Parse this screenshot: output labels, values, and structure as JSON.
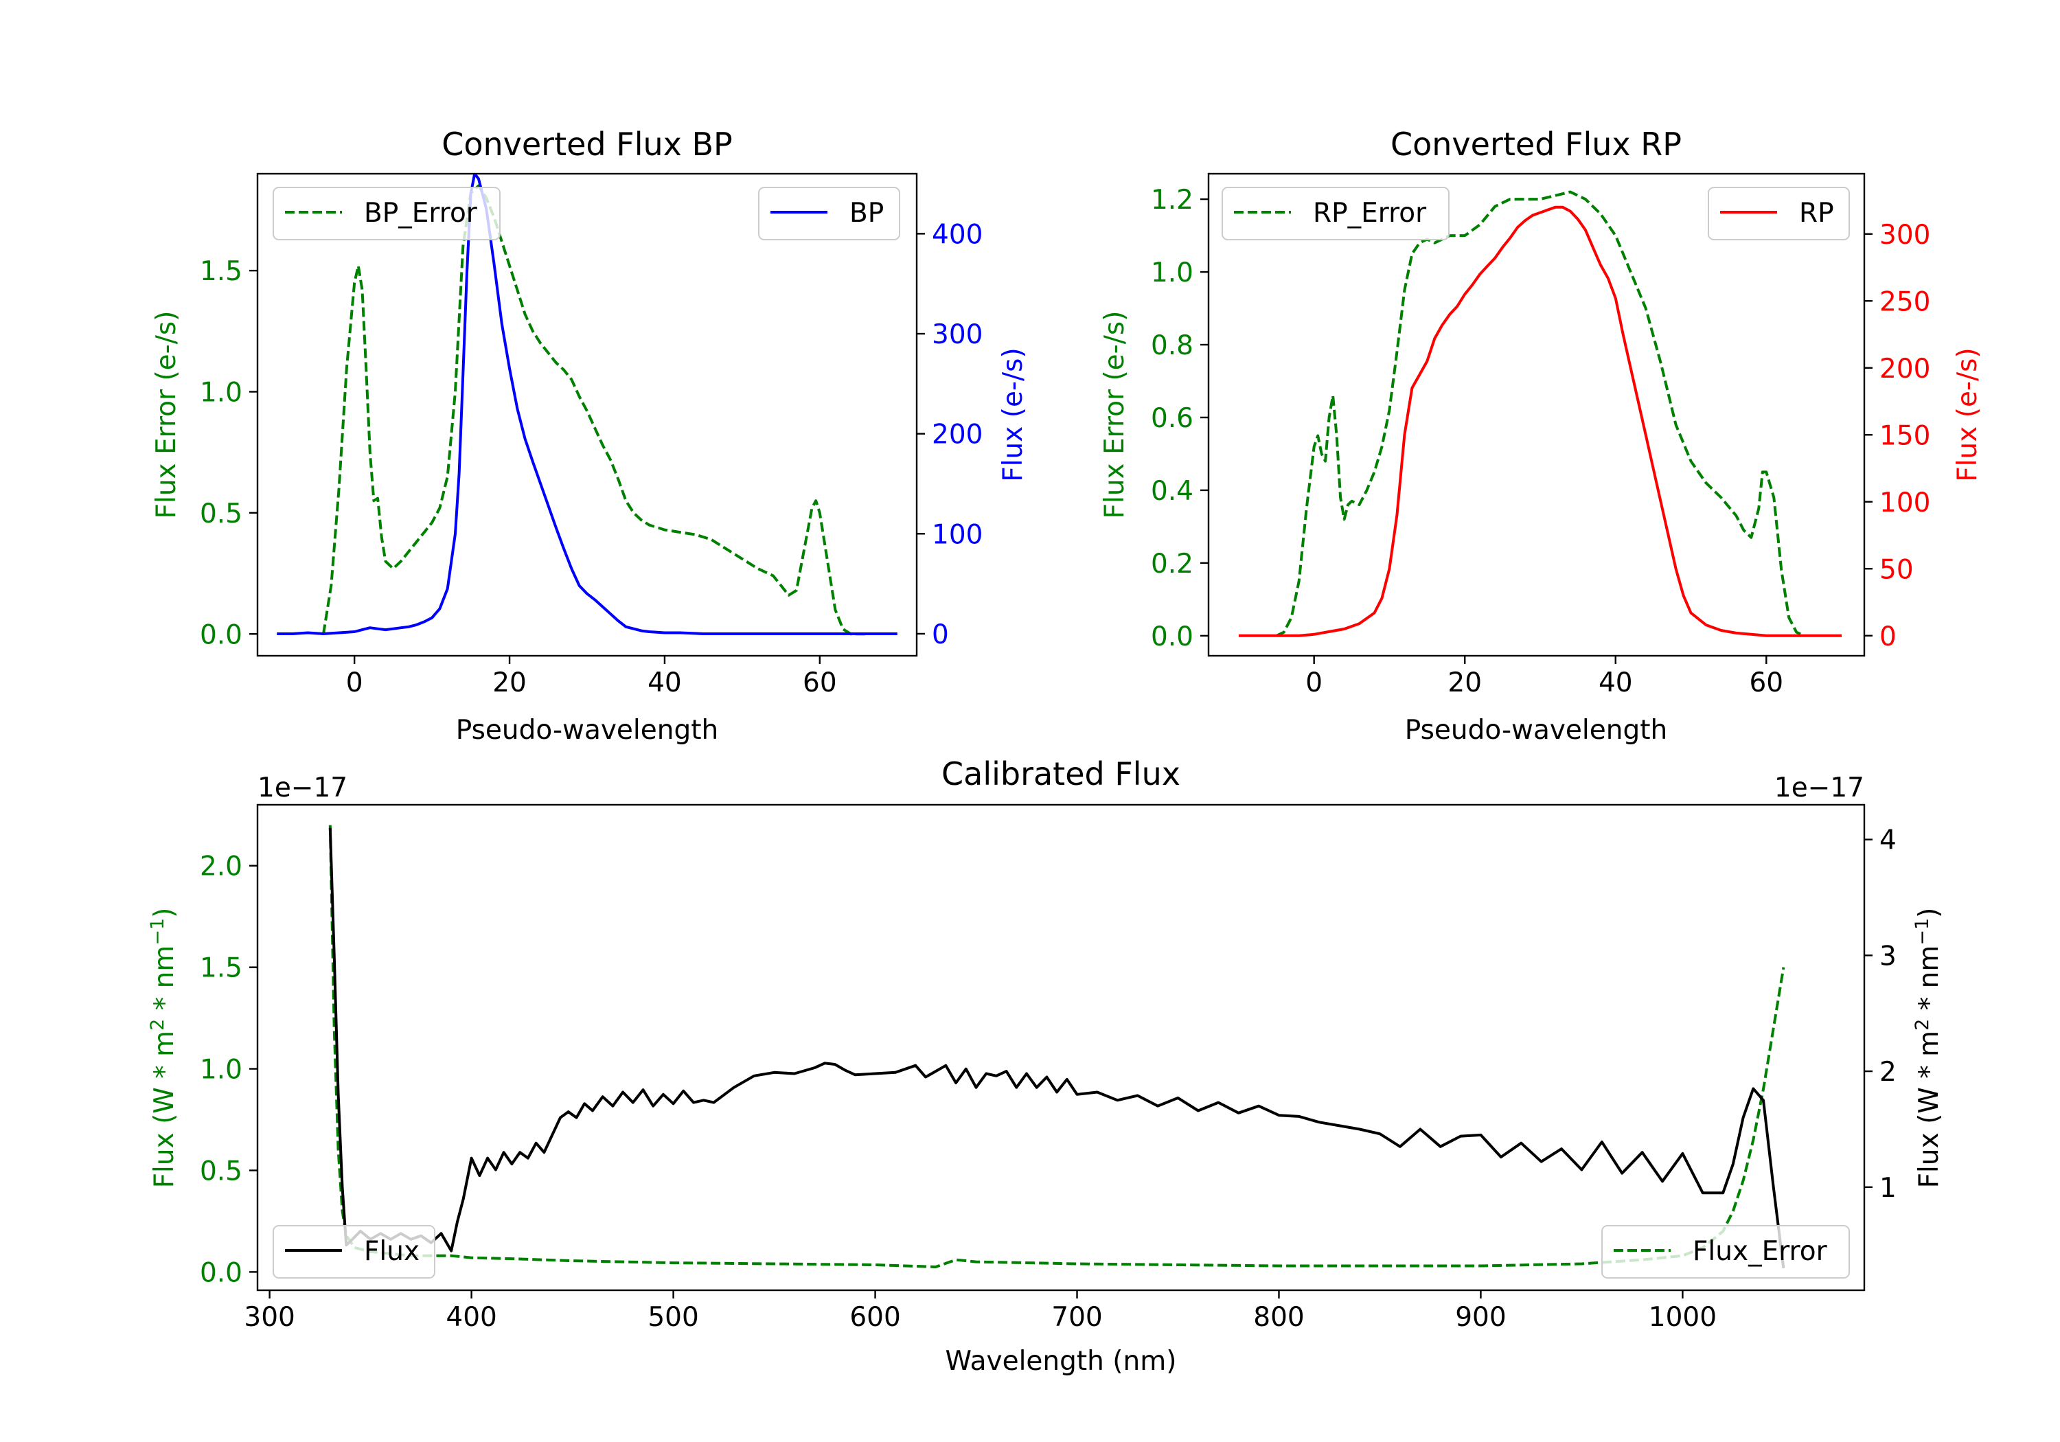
{
  "chart_data": [
    {
      "id": "bp",
      "type": "line",
      "title": "Converted Flux BP",
      "xlabel": "Pseudo-wavelength",
      "ylabel_left": "Flux Error (e-/s)",
      "ylabel_right": "Flux (e-/s)",
      "xlim": [
        -12.5,
        72.5
      ],
      "ylim_left": [
        -0.09,
        1.9
      ],
      "ylim_right": [
        -22,
        460
      ],
      "xticks": [
        0,
        20,
        40,
        60
      ],
      "xtick_labels": [
        "0",
        "20",
        "40",
        "60"
      ],
      "yticks_left": [
        0.0,
        0.5,
        1.0,
        1.5
      ],
      "ytick_labels_left": [
        "0.0",
        "0.5",
        "1.0",
        "1.5"
      ],
      "yticks_right": [
        0,
        100,
        200,
        300,
        400
      ],
      "ytick_labels_right": [
        "0",
        "100",
        "200",
        "300",
        "400"
      ],
      "left_color": "#008000",
      "right_color": "#0000ff",
      "series": [
        {
          "name": "BP_Error",
          "axis": "left",
          "style": "dashed",
          "color": "#008000",
          "x": [
            -4,
            -3,
            -2,
            -1,
            0,
            0.5,
            1,
            1.5,
            2,
            2.5,
            3,
            3.5,
            4,
            5,
            6,
            7,
            8,
            9,
            10,
            11,
            12,
            13,
            14,
            15,
            16,
            17,
            18,
            19,
            20,
            21,
            22,
            23,
            24,
            25,
            26,
            27,
            28,
            29,
            30,
            31,
            32,
            33,
            34,
            35,
            36,
            37,
            38,
            40,
            42,
            44,
            46,
            48,
            50,
            52,
            54,
            56,
            57,
            58,
            59,
            59.5,
            60,
            61,
            62,
            63,
            64,
            65,
            66
          ],
          "y": [
            0.0,
            0.2,
            0.6,
            1.1,
            1.45,
            1.52,
            1.42,
            1.1,
            0.75,
            0.55,
            0.56,
            0.4,
            0.3,
            0.27,
            0.3,
            0.34,
            0.38,
            0.42,
            0.46,
            0.52,
            0.65,
            1.0,
            1.6,
            1.82,
            1.85,
            1.8,
            1.72,
            1.62,
            1.52,
            1.42,
            1.32,
            1.25,
            1.2,
            1.16,
            1.12,
            1.09,
            1.05,
            0.98,
            0.92,
            0.85,
            0.78,
            0.72,
            0.64,
            0.55,
            0.5,
            0.47,
            0.45,
            0.43,
            0.42,
            0.41,
            0.39,
            0.35,
            0.31,
            0.27,
            0.24,
            0.16,
            0.18,
            0.35,
            0.52,
            0.55,
            0.5,
            0.3,
            0.1,
            0.02,
            0.0,
            0.0,
            0.0
          ]
        },
        {
          "name": "BP",
          "axis": "right",
          "style": "solid",
          "color": "#0000ff",
          "x": [
            -10,
            -8,
            -6,
            -4,
            -2,
            0,
            1,
            2,
            3,
            4,
            5,
            6,
            7,
            8,
            9,
            10,
            11,
            12,
            13,
            13.5,
            14,
            14.5,
            15,
            15.5,
            16,
            17,
            18,
            19,
            20,
            21,
            22,
            23,
            24,
            25,
            26,
            27,
            28,
            29,
            30,
            31,
            32,
            33,
            34,
            35,
            36,
            37,
            38,
            40,
            42,
            45,
            50,
            55,
            60,
            65,
            70
          ],
          "y": [
            0,
            0,
            1,
            0,
            1,
            2,
            4,
            6,
            5,
            4,
            5,
            6,
            7,
            9,
            12,
            16,
            25,
            45,
            100,
            160,
            260,
            360,
            440,
            460,
            455,
            425,
            370,
            310,
            265,
            225,
            195,
            172,
            150,
            128,
            106,
            85,
            65,
            48,
            40,
            34,
            27,
            20,
            13,
            7,
            5,
            3,
            2,
            1,
            1,
            0,
            0,
            0,
            0,
            0,
            0
          ]
        }
      ],
      "legend": [
        {
          "label": "BP_Error",
          "placement": "upper-left"
        },
        {
          "label": "BP",
          "placement": "upper-right"
        }
      ]
    },
    {
      "id": "rp",
      "type": "line",
      "title": "Converted Flux RP",
      "xlabel": "Pseudo-wavelength",
      "ylabel_left": "Flux Error (e-/s)",
      "ylabel_right": "Flux (e-/s)",
      "xlim": [
        -14,
        73
      ],
      "ylim_left": [
        -0.055,
        1.27
      ],
      "ylim_right": [
        -15,
        345
      ],
      "xticks": [
        0,
        20,
        40,
        60
      ],
      "xtick_labels": [
        "0",
        "20",
        "40",
        "60"
      ],
      "yticks_left": [
        0.0,
        0.2,
        0.4,
        0.6,
        0.8,
        1.0,
        1.2
      ],
      "ytick_labels_left": [
        "0.0",
        "0.2",
        "0.4",
        "0.6",
        "0.8",
        "1.0",
        "1.2"
      ],
      "yticks_right": [
        0,
        50,
        100,
        150,
        200,
        250,
        300
      ],
      "ytick_labels_right": [
        "0",
        "50",
        "100",
        "150",
        "200",
        "250",
        "300"
      ],
      "left_color": "#008000",
      "right_color": "#ff0000",
      "series": [
        {
          "name": "RP_Error",
          "axis": "left",
          "style": "dashed",
          "color": "#008000",
          "x": [
            -5,
            -4,
            -3,
            -2,
            -1,
            0,
            0.5,
            1,
            1.5,
            2,
            2.5,
            3,
            3.5,
            4,
            4.5,
            5,
            6,
            7,
            8,
            9,
            10,
            11,
            12,
            13,
            14,
            15,
            16,
            18,
            20,
            22,
            24,
            26,
            28,
            30,
            32,
            34,
            36,
            38,
            40,
            42,
            44,
            46,
            48,
            50,
            52,
            54,
            56,
            57,
            58,
            59,
            59.5,
            60,
            61,
            62,
            63,
            64,
            65
          ],
          "y": [
            0.0,
            0.01,
            0.05,
            0.15,
            0.35,
            0.52,
            0.55,
            0.5,
            0.48,
            0.6,
            0.66,
            0.55,
            0.38,
            0.32,
            0.36,
            0.37,
            0.36,
            0.4,
            0.45,
            0.52,
            0.62,
            0.78,
            0.95,
            1.05,
            1.08,
            1.09,
            1.08,
            1.1,
            1.1,
            1.13,
            1.18,
            1.2,
            1.2,
            1.2,
            1.21,
            1.22,
            1.2,
            1.16,
            1.1,
            1.0,
            0.9,
            0.75,
            0.58,
            0.48,
            0.42,
            0.38,
            0.33,
            0.29,
            0.27,
            0.35,
            0.45,
            0.45,
            0.38,
            0.18,
            0.05,
            0.01,
            0.0
          ]
        },
        {
          "name": "RP",
          "axis": "right",
          "style": "solid",
          "color": "#ff0000",
          "x": [
            -10,
            -8,
            -6,
            -4,
            -2,
            0,
            2,
            4,
            6,
            8,
            9,
            10,
            11,
            12,
            13,
            14,
            15,
            16,
            17,
            18,
            19,
            20,
            21,
            22,
            23,
            24,
            25,
            26,
            27,
            28,
            29,
            30,
            31,
            32,
            33,
            34,
            35,
            36,
            37,
            38,
            39,
            40,
            41,
            42,
            43,
            44,
            45,
            46,
            47,
            48,
            49,
            50,
            52,
            54,
            56,
            58,
            60,
            62,
            65,
            70
          ],
          "y": [
            0,
            0,
            0,
            0,
            0,
            1,
            3,
            5,
            9,
            17,
            28,
            50,
            90,
            150,
            185,
            195,
            205,
            222,
            232,
            240,
            246,
            255,
            262,
            270,
            276,
            282,
            290,
            297,
            305,
            310,
            314,
            316,
            318,
            320,
            320,
            317,
            311,
            303,
            290,
            277,
            267,
            252,
            225,
            200,
            175,
            150,
            125,
            100,
            75,
            50,
            30,
            17,
            8,
            4,
            2,
            1,
            0,
            0,
            0,
            0
          ]
        }
      ],
      "legend": [
        {
          "label": "RP_Error",
          "placement": "upper-left"
        },
        {
          "label": "RP",
          "placement": "upper-right"
        }
      ]
    },
    {
      "id": "cal",
      "type": "line",
      "title": "Calibrated Flux",
      "xlabel": "Wavelength (nm)",
      "ylabel_left": "Flux (W * m^2 * nm^-1)",
      "ylabel_right": "Flux (W * m^2 * nm^-1)",
      "ylabel_text": "Flux (W * m",
      "ylabel_sup1": "2",
      "ylabel_mid": " * nm",
      "ylabel_sup2": "−1",
      "ylabel_end": ")",
      "offset_left": "1e−17",
      "offset_right": "1e−17",
      "xlim": [
        294,
        1090
      ],
      "ylim_left": [
        -0.09,
        2.3
      ],
      "ylim_right": [
        0.11,
        4.3
      ],
      "xticks": [
        300,
        400,
        500,
        600,
        700,
        800,
        900,
        1000
      ],
      "xtick_labels": [
        "300",
        "400",
        "500",
        "600",
        "700",
        "800",
        "900",
        "1000"
      ],
      "yticks_left": [
        0.0,
        0.5,
        1.0,
        1.5,
        2.0
      ],
      "ytick_labels_left": [
        "0.0",
        "0.5",
        "1.0",
        "1.5",
        "2.0"
      ],
      "yticks_right": [
        1,
        2,
        3,
        4
      ],
      "ytick_labels_right": [
        "1",
        "2",
        "3",
        "4"
      ],
      "left_color": "#008000",
      "right_color": "#000000",
      "series": [
        {
          "name": "Flux_Error",
          "axis": "left",
          "style": "dashed",
          "color": "#008000",
          "x": [
            330,
            332,
            334,
            336,
            338,
            342,
            350,
            360,
            370,
            380,
            390,
            400,
            420,
            450,
            500,
            550,
            600,
            630,
            640,
            650,
            700,
            750,
            800,
            850,
            900,
            950,
            980,
            1000,
            1010,
            1020,
            1025,
            1030,
            1035,
            1040,
            1045,
            1050
          ],
          "y": [
            2.2,
            1.2,
            0.6,
            0.3,
            0.18,
            0.12,
            0.1,
            0.09,
            0.08,
            0.08,
            0.08,
            0.07,
            0.065,
            0.055,
            0.045,
            0.04,
            0.035,
            0.025,
            0.06,
            0.05,
            0.04,
            0.035,
            0.03,
            0.03,
            0.03,
            0.04,
            0.06,
            0.08,
            0.12,
            0.2,
            0.3,
            0.45,
            0.65,
            0.9,
            1.2,
            1.5
          ]
        },
        {
          "name": "Flux",
          "axis": "right",
          "style": "solid",
          "color": "#000000",
          "x": [
            330,
            332,
            334,
            336,
            338,
            341,
            345,
            350,
            355,
            360,
            365,
            370,
            375,
            380,
            385,
            390,
            393,
            396,
            400,
            404,
            408,
            412,
            416,
            420,
            424,
            428,
            432,
            436,
            440,
            444,
            448,
            452,
            456,
            460,
            465,
            470,
            475,
            480,
            485,
            490,
            495,
            500,
            505,
            510,
            515,
            520,
            530,
            540,
            550,
            560,
            570,
            575,
            580,
            585,
            590,
            600,
            610,
            620,
            625,
            630,
            635,
            640,
            645,
            650,
            655,
            660,
            665,
            670,
            675,
            680,
            685,
            690,
            695,
            700,
            710,
            720,
            730,
            740,
            750,
            760,
            770,
            780,
            790,
            800,
            810,
            820,
            830,
            840,
            850,
            860,
            870,
            880,
            890,
            900,
            910,
            920,
            930,
            940,
            950,
            960,
            970,
            980,
            990,
            1000,
            1010,
            1020,
            1025,
            1030,
            1035,
            1040,
            1045,
            1050
          ],
          "y": [
            4.1,
            3.0,
            1.8,
            1.0,
            0.5,
            0.55,
            0.62,
            0.55,
            0.6,
            0.55,
            0.6,
            0.55,
            0.58,
            0.52,
            0.6,
            0.45,
            0.7,
            0.9,
            1.25,
            1.1,
            1.25,
            1.15,
            1.3,
            1.2,
            1.3,
            1.25,
            1.38,
            1.3,
            1.45,
            1.6,
            1.65,
            1.6,
            1.72,
            1.66,
            1.78,
            1.7,
            1.82,
            1.73,
            1.84,
            1.7,
            1.8,
            1.72,
            1.83,
            1.73,
            1.75,
            1.73,
            1.86,
            1.96,
            1.99,
            1.98,
            2.03,
            2.07,
            2.06,
            2.01,
            1.97,
            1.98,
            1.99,
            2.05,
            1.95,
            2.0,
            2.05,
            1.9,
            2.02,
            1.86,
            1.98,
            1.96,
            2.0,
            1.86,
            1.98,
            1.86,
            1.95,
            1.82,
            1.93,
            1.8,
            1.82,
            1.75,
            1.79,
            1.7,
            1.77,
            1.66,
            1.73,
            1.64,
            1.7,
            1.62,
            1.61,
            1.56,
            1.53,
            1.5,
            1.46,
            1.35,
            1.5,
            1.35,
            1.44,
            1.45,
            1.26,
            1.38,
            1.22,
            1.33,
            1.15,
            1.39,
            1.12,
            1.3,
            1.05,
            1.29,
            0.95,
            0.95,
            1.2,
            1.6,
            1.85,
            1.75,
            1.0,
            0.3
          ]
        }
      ],
      "legend": [
        {
          "label": "Flux",
          "placement": "lower-left"
        },
        {
          "label": "Flux_Error",
          "placement": "lower-right"
        }
      ]
    }
  ]
}
